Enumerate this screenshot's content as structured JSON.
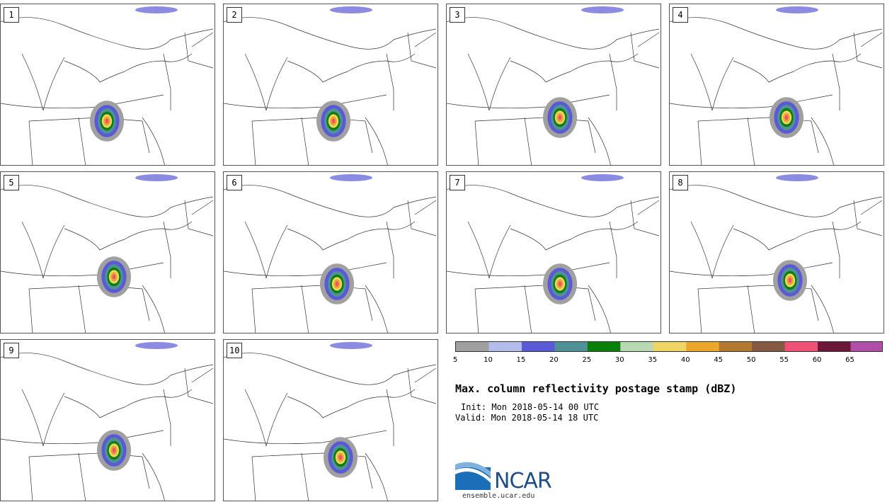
{
  "panels": [
    {
      "label": "1"
    },
    {
      "label": "2"
    },
    {
      "label": "3"
    },
    {
      "label": "4"
    },
    {
      "label": "5"
    },
    {
      "label": "6"
    },
    {
      "label": "7"
    },
    {
      "label": "8"
    },
    {
      "label": "9"
    },
    {
      "label": "10"
    }
  ],
  "colorbar": {
    "ticks": [
      "5",
      "10",
      "15",
      "20",
      "25",
      "30",
      "35",
      "40",
      "45",
      "50",
      "55",
      "60",
      "65"
    ],
    "colors": [
      "#a0a0a0",
      "#b4bceb",
      "#5a5ad6",
      "#4f9196",
      "#0a800a",
      "#b9d9b2",
      "#eed564",
      "#eaa72a",
      "#b2792f",
      "#855842",
      "#ef5276",
      "#6c1639",
      "#b14ea8"
    ]
  },
  "title": "Max. column reflectivity postage stamp (dBZ)",
  "init": "Init: Mon 2018-05-14 00 UTC",
  "valid": "Valid: Mon 2018-05-14 18 UTC",
  "logo": {
    "text": "NCAR",
    "url": "ensemble.ucar.edu"
  }
}
